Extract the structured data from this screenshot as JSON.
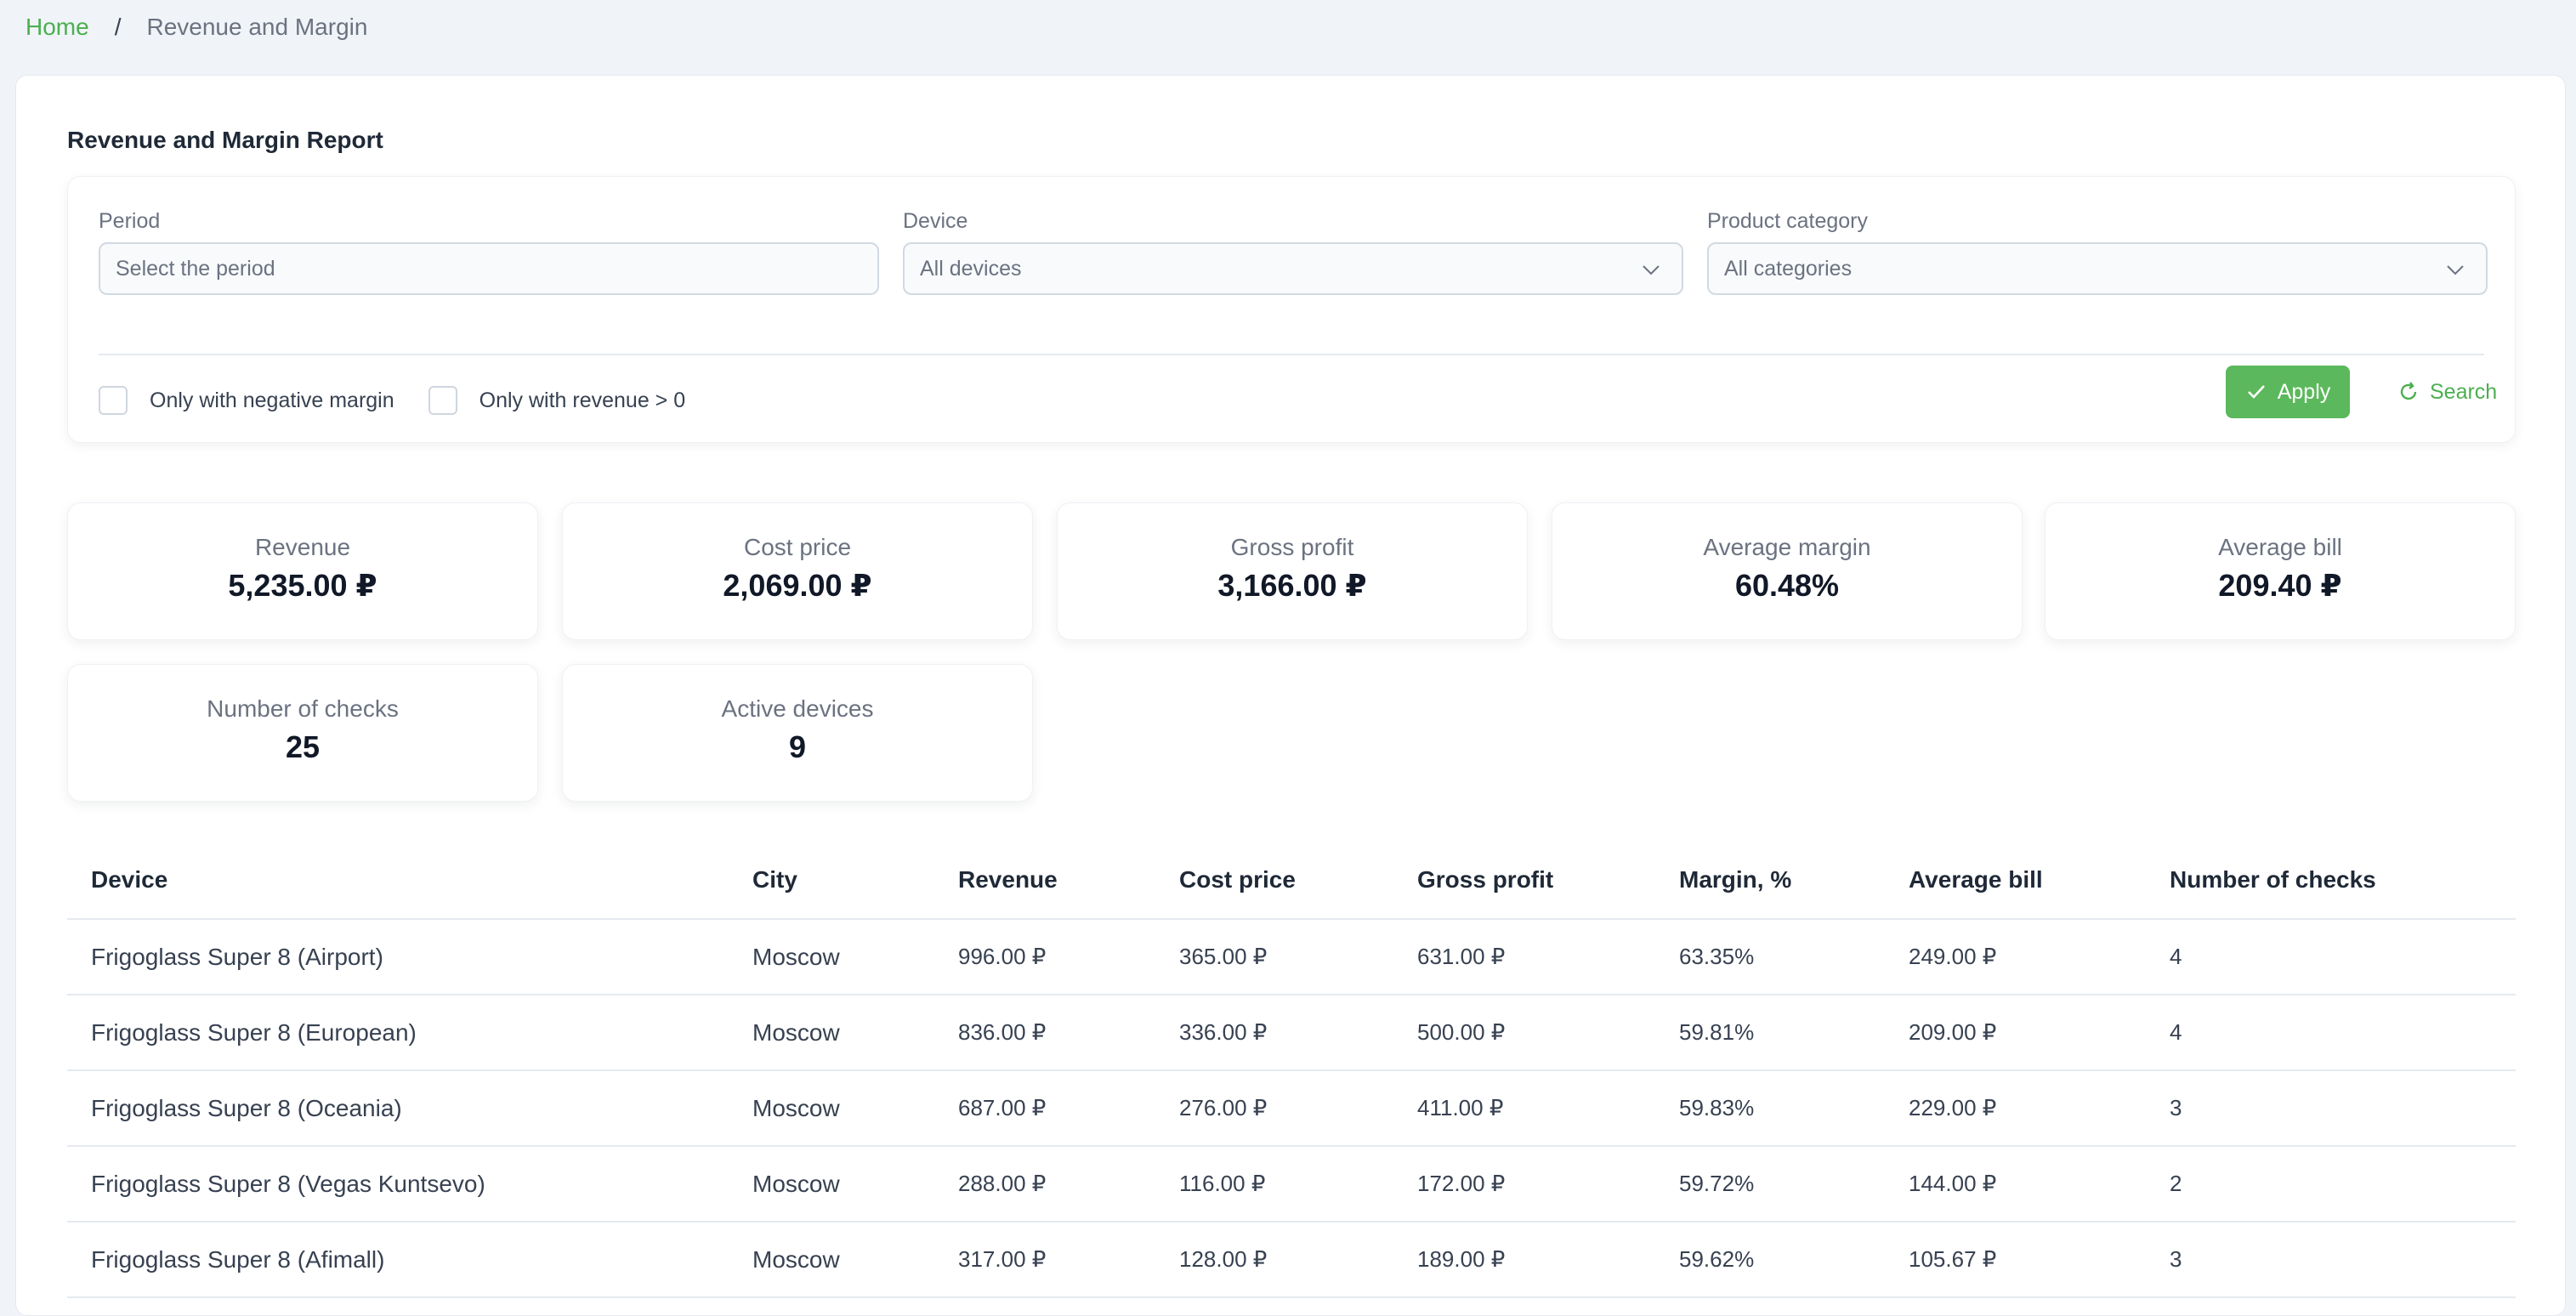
{
  "breadcrumb": {
    "home": "Home",
    "separator": "/",
    "current": "Revenue and Margin"
  },
  "report": {
    "title": "Revenue and Margin Report"
  },
  "filters": {
    "period": {
      "label": "Period",
      "placeholder": "Select the period"
    },
    "device": {
      "label": "Device",
      "value": "All devices"
    },
    "category": {
      "label": "Product category",
      "value": "All categories"
    },
    "only_negative_margin": "Only with negative margin",
    "only_revenue_positive": "Only with revenue > 0",
    "apply_label": "Apply",
    "search_label": "Search"
  },
  "stats": [
    {
      "label": "Revenue",
      "value": "5,235.00 ₽"
    },
    {
      "label": "Cost price",
      "value": "2,069.00 ₽"
    },
    {
      "label": "Gross profit",
      "value": "3,166.00 ₽"
    },
    {
      "label": "Average margin",
      "value": "60.48%"
    },
    {
      "label": "Average bill",
      "value": "209.40 ₽"
    },
    {
      "label": "Number of checks",
      "value": "25"
    },
    {
      "label": "Active devices",
      "value": "9"
    }
  ],
  "table": {
    "headers": [
      "Device",
      "City",
      "Revenue",
      "Cost price",
      "Gross profit",
      "Margin, %",
      "Average bill",
      "Number of checks"
    ],
    "rows": [
      [
        "Frigoglass Super 8 (Airport)",
        "Moscow",
        "996.00 ₽",
        "365.00 ₽",
        "631.00 ₽",
        "63.35%",
        "249.00 ₽",
        "4"
      ],
      [
        "Frigoglass Super 8 (European)",
        "Moscow",
        "836.00 ₽",
        "336.00 ₽",
        "500.00 ₽",
        "59.81%",
        "209.00 ₽",
        "4"
      ],
      [
        "Frigoglass Super 8 (Oceania)",
        "Moscow",
        "687.00 ₽",
        "276.00 ₽",
        "411.00 ₽",
        "59.83%",
        "229.00 ₽",
        "3"
      ],
      [
        "Frigoglass Super 8 (Vegas Kuntsevo)",
        "Moscow",
        "288.00 ₽",
        "116.00 ₽",
        "172.00 ₽",
        "59.72%",
        "144.00 ₽",
        "2"
      ],
      [
        "Frigoglass Super 8 (Afimall)",
        "Moscow",
        "317.00 ₽",
        "128.00 ₽",
        "189.00 ₽",
        "59.62%",
        "105.67 ₽",
        "3"
      ]
    ]
  },
  "colors": {
    "accent": "#5cb85c",
    "link": "#4caf50",
    "background": "#f0f4f8"
  }
}
